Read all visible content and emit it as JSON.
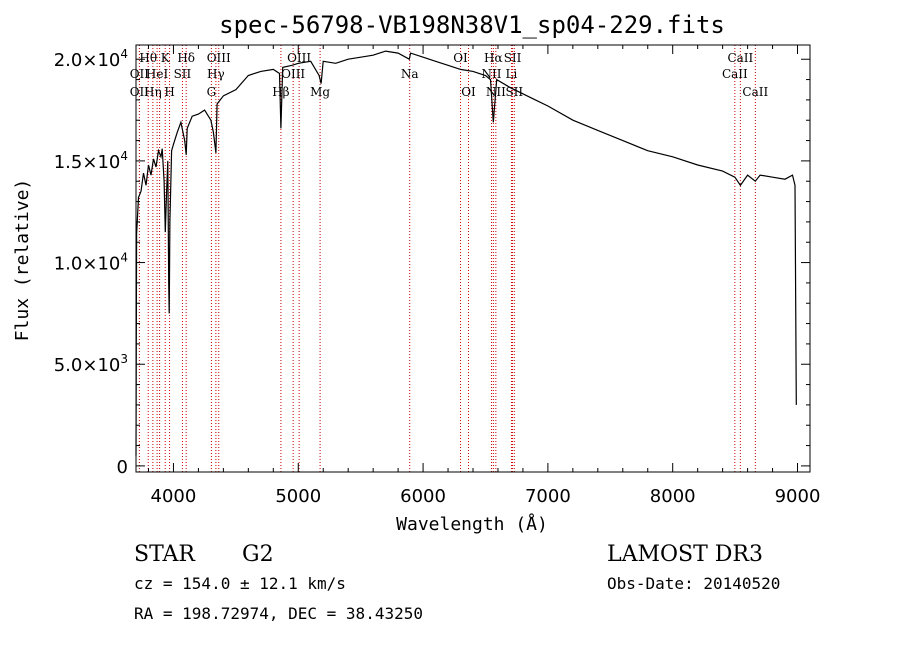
{
  "chart_data": {
    "type": "line",
    "title": "spec-56798-VB198N38V1_sp04-229.fits",
    "xlabel": "Wavelength (Å)",
    "ylabel": "Flux (relative)",
    "xlim": [
      3700,
      9100
    ],
    "ylim": [
      -300,
      20700
    ],
    "grid": false,
    "x_ticks": [
      {
        "value": 4000,
        "label": "4000"
      },
      {
        "value": 5000,
        "label": "5000"
      },
      {
        "value": 6000,
        "label": "6000"
      },
      {
        "value": 7000,
        "label": "7000"
      },
      {
        "value": 8000,
        "label": "8000"
      },
      {
        "value": 9000,
        "label": "9000"
      }
    ],
    "y_ticks": [
      {
        "value": 0,
        "mantissa": "0",
        "exponent": ""
      },
      {
        "value": 5000,
        "mantissa": "5.0×10",
        "exponent": "3"
      },
      {
        "value": 10000,
        "mantissa": "1.0×10",
        "exponent": "4"
      },
      {
        "value": 15000,
        "mantissa": "1.5×10",
        "exponent": "4"
      },
      {
        "value": 20000,
        "mantissa": "2.0×10",
        "exponent": "4"
      }
    ],
    "series": [
      {
        "color": "#000000",
        "points": [
          [
            3700,
            500
          ],
          [
            3705,
            11400
          ],
          [
            3720,
            13200
          ],
          [
            3740,
            13500
          ],
          [
            3760,
            14400
          ],
          [
            3780,
            13800
          ],
          [
            3800,
            14800
          ],
          [
            3820,
            14300
          ],
          [
            3840,
            15100
          ],
          [
            3860,
            14700
          ],
          [
            3880,
            15500
          ],
          [
            3900,
            15200
          ],
          [
            3910,
            15600
          ],
          [
            3925,
            14000
          ],
          [
            3935,
            11500
          ],
          [
            3945,
            13500
          ],
          [
            3955,
            15000
          ],
          [
            3962,
            9000
          ],
          [
            3966,
            7500
          ],
          [
            3972,
            12000
          ],
          [
            3985,
            15500
          ],
          [
            4000,
            15800
          ],
          [
            4030,
            16400
          ],
          [
            4060,
            16900
          ],
          [
            4090,
            16000
          ],
          [
            4102,
            15300
          ],
          [
            4110,
            16600
          ],
          [
            4150,
            17200
          ],
          [
            4200,
            17300
          ],
          [
            4250,
            17500
          ],
          [
            4300,
            17000
          ],
          [
            4320,
            16400
          ],
          [
            4340,
            15400
          ],
          [
            4350,
            17800
          ],
          [
            4400,
            18200
          ],
          [
            4500,
            18500
          ],
          [
            4600,
            19200
          ],
          [
            4700,
            19400
          ],
          [
            4800,
            19500
          ],
          [
            4850,
            19300
          ],
          [
            4861,
            16600
          ],
          [
            4875,
            19600
          ],
          [
            4950,
            19700
          ],
          [
            5000,
            19800
          ],
          [
            5100,
            19900
          ],
          [
            5167,
            19200
          ],
          [
            5183,
            18800
          ],
          [
            5200,
            19900
          ],
          [
            5300,
            19800
          ],
          [
            5400,
            20000
          ],
          [
            5500,
            20100
          ],
          [
            5600,
            20200
          ],
          [
            5700,
            20400
          ],
          [
            5800,
            20300
          ],
          [
            5890,
            20000
          ],
          [
            5900,
            20300
          ],
          [
            6000,
            20100
          ],
          [
            6100,
            19900
          ],
          [
            6200,
            19700
          ],
          [
            6300,
            19500
          ],
          [
            6400,
            19400
          ],
          [
            6500,
            19200
          ],
          [
            6540,
            19000
          ],
          [
            6563,
            16900
          ],
          [
            6590,
            19000
          ],
          [
            6700,
            18600
          ],
          [
            6800,
            18300
          ],
          [
            6900,
            18000
          ],
          [
            7000,
            17700
          ],
          [
            7200,
            17000
          ],
          [
            7400,
            16500
          ],
          [
            7600,
            16000
          ],
          [
            7800,
            15500
          ],
          [
            8000,
            15200
          ],
          [
            8200,
            14800
          ],
          [
            8400,
            14500
          ],
          [
            8498,
            14200
          ],
          [
            8542,
            13800
          ],
          [
            8600,
            14300
          ],
          [
            8662,
            14000
          ],
          [
            8700,
            14300
          ],
          [
            8800,
            14200
          ],
          [
            8900,
            14100
          ],
          [
            8960,
            14300
          ],
          [
            8980,
            13800
          ],
          [
            8990,
            3000
          ]
        ]
      }
    ],
    "lines": [
      {
        "x": 3727,
        "color": "#cc0000"
      },
      {
        "x": 3798,
        "color": "#cc0000"
      },
      {
        "x": 3835,
        "color": "#cc0000"
      },
      {
        "x": 3869,
        "color": "#cc0000"
      },
      {
        "x": 3889,
        "color": "#cc0000"
      },
      {
        "x": 3934,
        "color": "#cc0000"
      },
      {
        "x": 3969,
        "color": "#cc0000"
      },
      {
        "x": 4072,
        "color": "#cc0000"
      },
      {
        "x": 4102,
        "color": "#cc0000"
      },
      {
        "x": 4304,
        "color": "#cc0000"
      },
      {
        "x": 4340,
        "color": "#cc0000"
      },
      {
        "x": 4363,
        "color": "#cc0000"
      },
      {
        "x": 4861,
        "color": "#cc0000"
      },
      {
        "x": 4959,
        "color": "#cc0000"
      },
      {
        "x": 5007,
        "color": "#cc0000"
      },
      {
        "x": 5175,
        "color": "#cc0000"
      },
      {
        "x": 5893,
        "color": "#cc0000"
      },
      {
        "x": 6300,
        "color": "#cc0000"
      },
      {
        "x": 6364,
        "color": "#cc0000"
      },
      {
        "x": 6548,
        "color": "#cc0000"
      },
      {
        "x": 6563,
        "color": "#cc0000"
      },
      {
        "x": 6583,
        "color": "#cc0000"
      },
      {
        "x": 6708,
        "color": "#cc0000"
      },
      {
        "x": 6717,
        "color": "#cc0000"
      },
      {
        "x": 6731,
        "color": "#cc0000"
      },
      {
        "x": 8498,
        "color": "#cc0000"
      },
      {
        "x": 8542,
        "color": "#cc0000"
      },
      {
        "x": 8662,
        "color": "#cc0000"
      }
    ],
    "line_labels": [
      {
        "text": "Hθ",
        "x": 3798,
        "row": 1
      },
      {
        "text": "K",
        "x": 3934,
        "row": 1
      },
      {
        "text": "Hδ",
        "x": 4102,
        "row": 1
      },
      {
        "text": "OIII",
        "x": 4363,
        "row": 1
      },
      {
        "text": "OIII",
        "x": 5007,
        "row": 1
      },
      {
        "text": "OI",
        "x": 6300,
        "row": 1
      },
      {
        "text": "Hα",
        "x": 6563,
        "row": 1
      },
      {
        "text": "SII",
        "x": 6717,
        "row": 1
      },
      {
        "text": "CaII",
        "x": 8542,
        "row": 1
      },
      {
        "text": "OII",
        "x": 3727,
        "row": 2
      },
      {
        "text": "HeI",
        "x": 3869,
        "row": 2
      },
      {
        "text": "SII",
        "x": 4072,
        "row": 2
      },
      {
        "text": "Hγ",
        "x": 4340,
        "row": 2
      },
      {
        "text": "OIII",
        "x": 4959,
        "row": 2
      },
      {
        "text": "Na",
        "x": 5893,
        "row": 2
      },
      {
        "text": "NII",
        "x": 6548,
        "row": 2
      },
      {
        "text": "Li",
        "x": 6708,
        "row": 2
      },
      {
        "text": "CaII",
        "x": 8498,
        "row": 2
      },
      {
        "text": "OII",
        "x": 3727,
        "row": 3
      },
      {
        "text": "Hη",
        "x": 3835,
        "row": 3
      },
      {
        "text": "H",
        "x": 3969,
        "row": 3
      },
      {
        "text": "G",
        "x": 4304,
        "row": 3
      },
      {
        "text": "Hβ",
        "x": 4861,
        "row": 3
      },
      {
        "text": "Mg",
        "x": 5175,
        "row": 3
      },
      {
        "text": "OI",
        "x": 6364,
        "row": 3
      },
      {
        "text": "NII",
        "x": 6583,
        "row": 3
      },
      {
        "text": "SII",
        "x": 6731,
        "row": 3
      },
      {
        "text": "CaII",
        "x": 8662,
        "row": 3
      }
    ]
  },
  "info": {
    "class": "STAR",
    "subclass": "G2",
    "survey": "LAMOST DR3",
    "cz": "cz = 154.0 ± 12.1 km/s",
    "obs_date": "Obs-Date: 20140520",
    "coords": "RA = 198.72974, DEC =  38.43250"
  }
}
